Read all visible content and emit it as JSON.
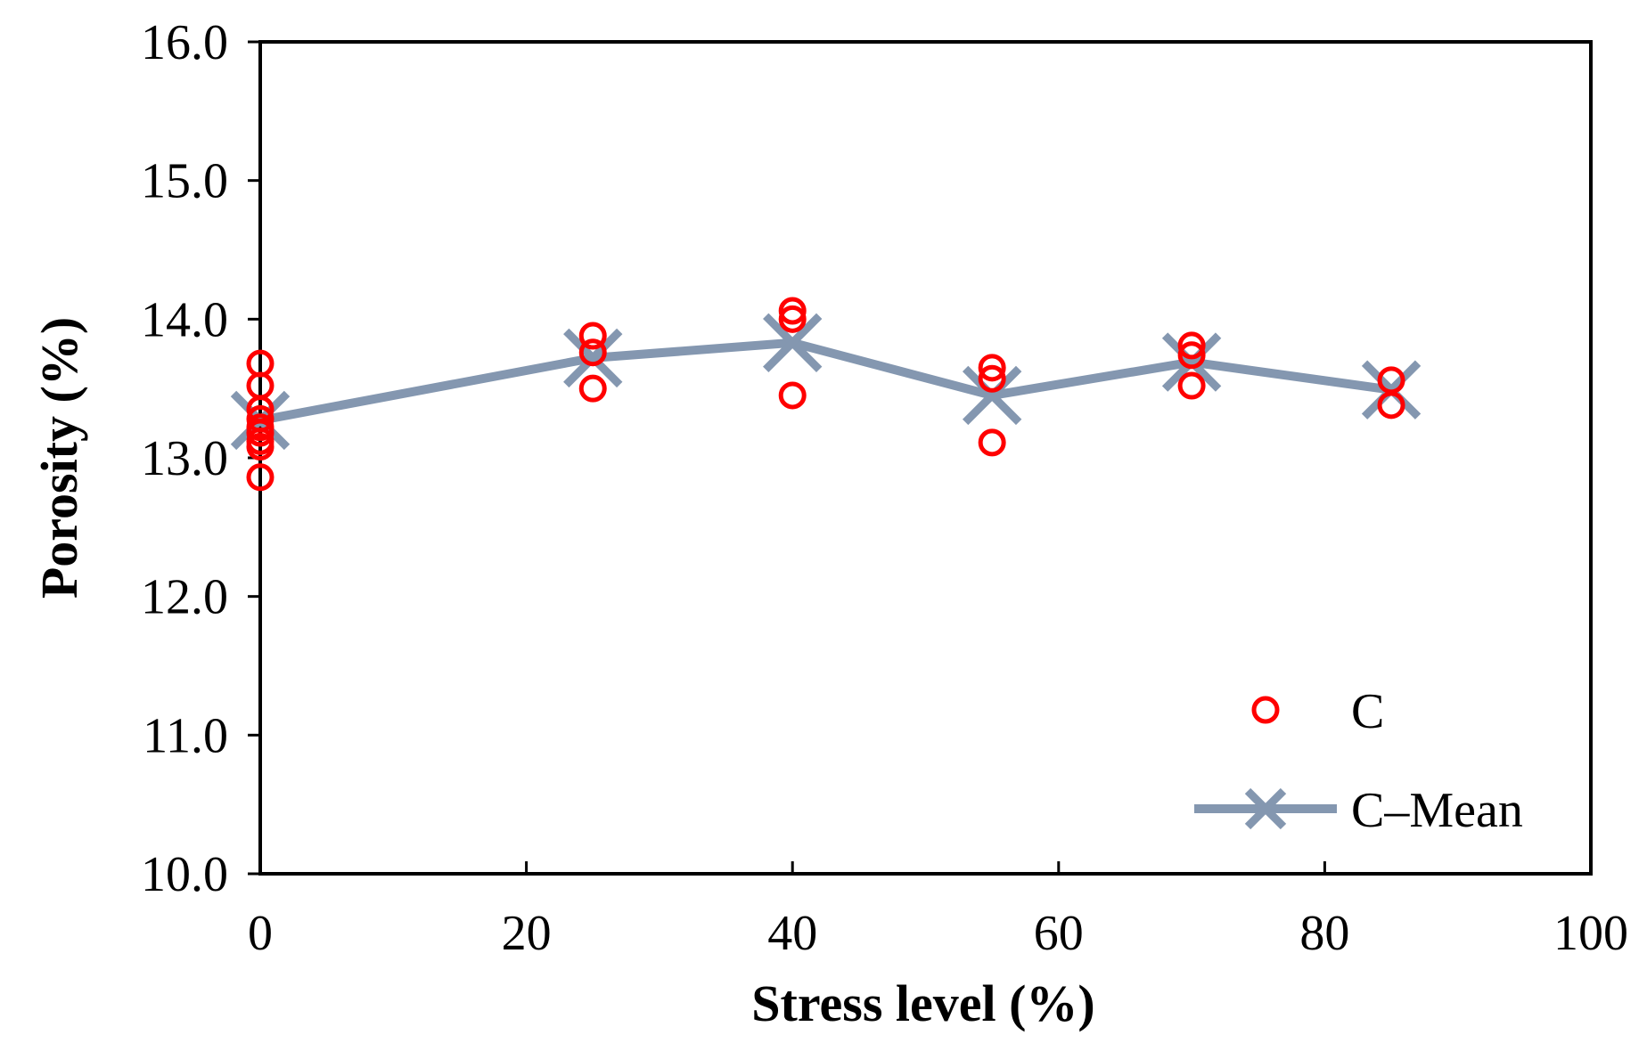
{
  "chart_data": {
    "type": "scatter",
    "title": "",
    "xlabel": "Stress level (%)",
    "ylabel": "Porosity (%)",
    "xlim": [
      0,
      100
    ],
    "ylim": [
      10.0,
      16.0
    ],
    "xticks": [
      0,
      20,
      40,
      60,
      80,
      100
    ],
    "yticks": [
      10.0,
      11.0,
      12.0,
      13.0,
      14.0,
      15.0,
      16.0
    ],
    "xtick_labels": [
      "0",
      "20",
      "40",
      "60",
      "80",
      "100"
    ],
    "ytick_labels": [
      "10.0",
      "11.0",
      "12.0",
      "13.0",
      "14.0",
      "15.0",
      "16.0"
    ],
    "grid": false,
    "legend_position": "bottom-right",
    "series": [
      {
        "name": "C",
        "style": "markers",
        "marker": "open-circle",
        "color": "#ff0000",
        "points": [
          [
            0,
            13.68
          ],
          [
            0,
            13.52
          ],
          [
            0,
            13.35
          ],
          [
            0,
            13.28
          ],
          [
            0,
            13.22
          ],
          [
            0,
            13.18
          ],
          [
            0,
            13.12
          ],
          [
            0,
            13.08
          ],
          [
            0,
            12.86
          ],
          [
            25,
            13.88
          ],
          [
            25,
            13.76
          ],
          [
            25,
            13.5
          ],
          [
            40,
            14.06
          ],
          [
            40,
            14.0
          ],
          [
            40,
            13.45
          ],
          [
            55,
            13.65
          ],
          [
            55,
            13.57
          ],
          [
            55,
            13.11
          ],
          [
            70,
            13.81
          ],
          [
            70,
            13.74
          ],
          [
            70,
            13.52
          ],
          [
            85,
            13.56
          ],
          [
            85,
            13.38
          ]
        ]
      },
      {
        "name": "C–Mean",
        "style": "line-markers",
        "marker": "x",
        "color": "#8497b0",
        "points": [
          [
            0,
            13.27
          ],
          [
            25,
            13.72
          ],
          [
            40,
            13.83
          ],
          [
            55,
            13.45
          ],
          [
            70,
            13.69
          ],
          [
            85,
            13.49
          ]
        ]
      }
    ]
  }
}
